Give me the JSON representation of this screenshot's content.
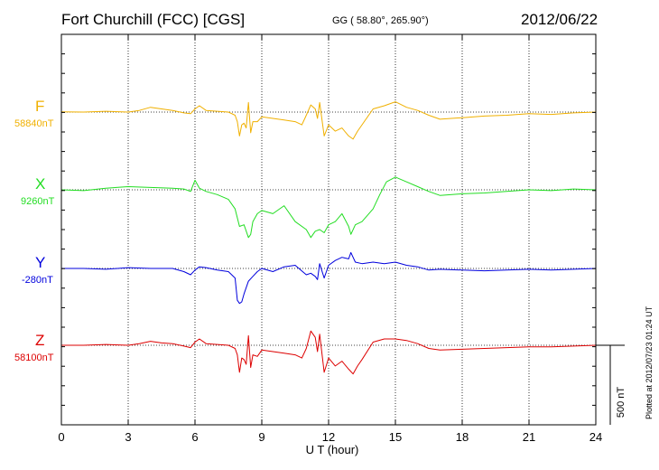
{
  "header": {
    "station": "Fort Churchill (FCC)  [CGS]",
    "coords": "GG ( 58.80°, 265.90°)",
    "date": "2012/06/22"
  },
  "footer": {
    "plotted": "Plotted at 2012/07/23 01:24  UT"
  },
  "colors": {
    "F": "#f0b000",
    "X": "#22dd22",
    "Y": "#0000dd",
    "Z": "#dd0000"
  },
  "chart_data": {
    "type": "line",
    "xlabel": "U T (hour)",
    "xlim": [
      0,
      24
    ],
    "xticks": [
      0,
      3,
      6,
      9,
      12,
      15,
      18,
      21,
      24
    ],
    "scale_bar": "500 nT",
    "grid": true,
    "series": [
      {
        "name": "F",
        "baseline_label": "58840nT",
        "x": [
          0,
          1,
          2,
          3,
          3.5,
          4,
          4.5,
          5,
          5.5,
          5.8,
          6,
          6.2,
          6.5,
          7,
          7.5,
          7.8,
          7.9,
          8,
          8.1,
          8.2,
          8.3,
          8.4,
          8.5,
          8.6,
          8.8,
          9,
          9.5,
          10,
          10.5,
          10.8,
          11,
          11.2,
          11.4,
          11.5,
          11.6,
          11.8,
          12,
          12.3,
          12.6,
          12.9,
          13.1,
          13.3,
          13.5,
          14,
          14.5,
          15,
          15.5,
          16,
          16.5,
          17,
          18,
          19,
          20,
          21,
          22,
          23,
          24
        ],
        "y": [
          1,
          0,
          5,
          0,
          10,
          30,
          20,
          10,
          -5,
          -10,
          20,
          40,
          10,
          5,
          0,
          -20,
          -60,
          -150,
          -80,
          -70,
          -100,
          60,
          -130,
          -60,
          -60,
          -30,
          -40,
          -50,
          -60,
          -80,
          -20,
          45,
          20,
          -40,
          60,
          -150,
          -80,
          -120,
          -100,
          -150,
          -170,
          -120,
          -80,
          20,
          40,
          65,
          30,
          10,
          -20,
          -45,
          -35,
          -25,
          -20,
          -10,
          -15,
          -5,
          0
        ]
      },
      {
        "name": "X",
        "baseline_label": "9260nT",
        "x": [
          0,
          1,
          2,
          3,
          4,
          5,
          5.5,
          5.8,
          6,
          6.2,
          6.5,
          7,
          7.5,
          7.8,
          8,
          8.2,
          8.4,
          8.5,
          8.6,
          8.8,
          9,
          9.5,
          10,
          10.5,
          11,
          11.2,
          11.4,
          11.6,
          11.8,
          12,
          12.3,
          12.6,
          12.9,
          13,
          13.2,
          13.5,
          14,
          14.3,
          14.6,
          15,
          15.5,
          16,
          16.5,
          17,
          18,
          19,
          20,
          21,
          22,
          23,
          24
        ],
        "y": [
          0,
          -5,
          10,
          20,
          15,
          10,
          5,
          -10,
          60,
          10,
          -10,
          -30,
          -60,
          -120,
          -230,
          -220,
          -300,
          -280,
          -200,
          -150,
          -130,
          -150,
          -100,
          -200,
          -250,
          -300,
          -260,
          -250,
          -270,
          -220,
          -200,
          -150,
          -230,
          -280,
          -220,
          -200,
          -120,
          -30,
          50,
          80,
          50,
          20,
          -10,
          -35,
          -25,
          -20,
          -10,
          0,
          -5,
          5,
          0
        ]
      },
      {
        "name": "Y",
        "baseline_label": "-280nT",
        "x": [
          0,
          1,
          2,
          3,
          4,
          5,
          5.5,
          5.8,
          6,
          6.2,
          6.5,
          7,
          7.5,
          7.8,
          7.9,
          8,
          8.1,
          8.2,
          8.4,
          8.6,
          8.8,
          9,
          9.5,
          10,
          10.5,
          11,
          11.2,
          11.4,
          11.5,
          11.6,
          11.8,
          12,
          12.3,
          12.6,
          12.9,
          13,
          13.2,
          13.5,
          14,
          14.5,
          15,
          15.5,
          16,
          16.5,
          17,
          18,
          19,
          20,
          21,
          22,
          23,
          24
        ],
        "y": [
          0,
          0,
          -5,
          5,
          0,
          0,
          -20,
          -40,
          -10,
          10,
          5,
          -10,
          -20,
          -60,
          -200,
          -220,
          -210,
          -160,
          -80,
          -50,
          -20,
          0,
          -20,
          10,
          20,
          -40,
          -30,
          -50,
          -70,
          30,
          -60,
          20,
          50,
          70,
          60,
          100,
          40,
          30,
          40,
          30,
          40,
          20,
          10,
          -10,
          -5,
          -10,
          -15,
          -10,
          -5,
          -10,
          -5,
          0
        ]
      },
      {
        "name": "Z",
        "baseline_label": "58100nT",
        "x": [
          0,
          1,
          2,
          3,
          3.5,
          4,
          4.5,
          5,
          5.5,
          5.8,
          6,
          6.2,
          6.5,
          7,
          7.5,
          7.8,
          7.9,
          8,
          8.1,
          8.2,
          8.3,
          8.4,
          8.5,
          8.6,
          8.8,
          9,
          9.5,
          10,
          10.5,
          10.8,
          11,
          11.2,
          11.4,
          11.5,
          11.6,
          11.8,
          12,
          12.3,
          12.6,
          12.9,
          13.1,
          13.3,
          13.5,
          14,
          14.5,
          15,
          15.5,
          16,
          16.5,
          17,
          18,
          19,
          20,
          21,
          22,
          23,
          24
        ],
        "y": [
          0,
          0,
          5,
          0,
          10,
          25,
          15,
          10,
          -5,
          -15,
          20,
          40,
          10,
          5,
          0,
          -20,
          -60,
          -170,
          -80,
          -90,
          -120,
          60,
          -140,
          -60,
          -70,
          -30,
          -40,
          -50,
          -60,
          -80,
          -20,
          90,
          50,
          -40,
          70,
          -170,
          -80,
          -130,
          -100,
          -150,
          -180,
          -130,
          -90,
          20,
          40,
          40,
          30,
          10,
          -20,
          -30,
          -25,
          -20,
          -15,
          -10,
          -10,
          -5,
          0
        ]
      }
    ]
  }
}
